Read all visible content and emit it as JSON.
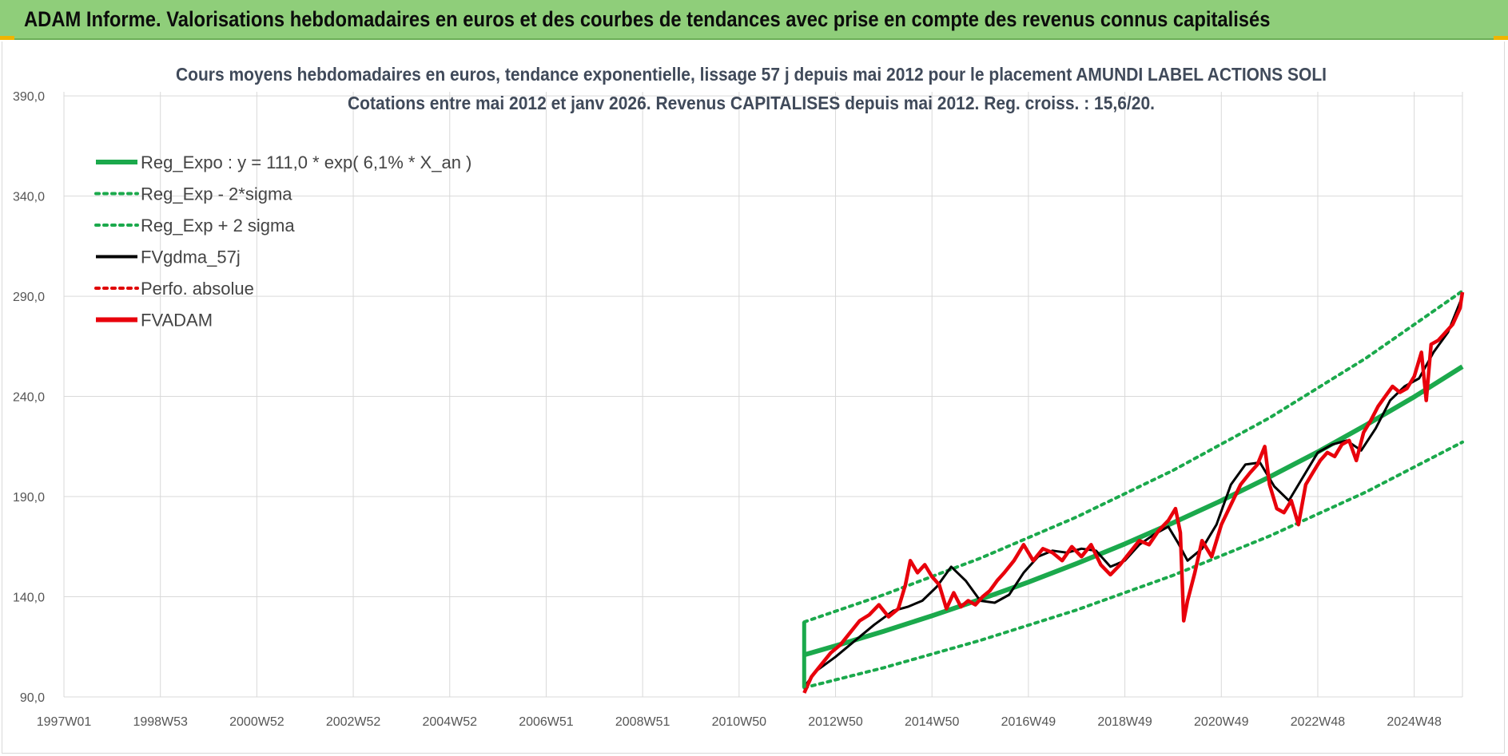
{
  "banner": {
    "title": "ADAM Informe. Valorisations hebdomadaires en euros et des courbes de tendances avec prise en compte des revenus connus capitalisés"
  },
  "colors": {
    "banner_bg": "#8fce7a",
    "corner_accent": "#f0b400",
    "regression": "#1ba94c",
    "band": "#1ba94c",
    "smoothed": "#000000",
    "perfo": "#e00000",
    "fvadam": "#e8000b"
  },
  "chart_data": {
    "type": "line",
    "title_lines": [
      "Cours moyens hebdomadaires en euros, tendance exponentielle, lissage 57 j depuis mai 2012 pour le placement AMUNDI LABEL ACTIONS SOLI",
      "Cotations entre mai 2012 et janv 2026. Revenus CAPITALISES depuis mai 2012. Reg. croiss. : 15,6/20."
    ],
    "xlabel": "",
    "ylabel": "",
    "ylim": [
      90,
      400
    ],
    "y_ticks": [
      "390,0",
      "340,0",
      "290,0",
      "240,0",
      "190,0",
      "140,0",
      "90,0"
    ],
    "y_tick_values": [
      390,
      340,
      290,
      240,
      190,
      140,
      90
    ],
    "x_range_years": [
      1997.0,
      2026.0
    ],
    "x_ticks": [
      "1997W01",
      "1998W53",
      "2000W52",
      "2002W52",
      "2004W52",
      "2006W51",
      "2008W51",
      "2010W50",
      "2012W50",
      "2014W50",
      "2016W49",
      "2018W49",
      "2020W49",
      "2022W48",
      "2024W48"
    ],
    "x_tick_years": [
      1997.0,
      1999.0,
      2001.0,
      2003.0,
      2005.0,
      2007.0,
      2009.0,
      2011.0,
      2013.0,
      2015.0,
      2017.0,
      2019.0,
      2021.0,
      2023.0,
      2025.0
    ],
    "grid": true,
    "legend_position": "top-left",
    "regression": {
      "a": 111.0,
      "rate": 0.061,
      "start_year": 2012.35,
      "band_factor": 0.148
    },
    "series": [
      {
        "name": "Reg_Expo : y = 111,0 * exp( 6,1% *  X_an )",
        "style": "solid-thick",
        "color": "#1ba94c",
        "x": [
          2012.35,
          2013,
          2014,
          2015,
          2016,
          2017,
          2018,
          2019,
          2020,
          2021,
          2022,
          2023,
          2024,
          2025,
          2026
        ],
        "values": [
          111.0,
          115.5,
          122.8,
          130.5,
          138.7,
          147.3,
          156.6,
          166.4,
          176.9,
          188.0,
          199.8,
          212.3,
          225.7,
          239.8,
          254.9
        ]
      },
      {
        "name": "Reg_Exp - 2*sigma",
        "style": "dotted",
        "color": "#1ba94c",
        "x": [
          2012.35,
          2014,
          2016,
          2018,
          2020,
          2022,
          2024,
          2026
        ],
        "values": [
          94.6,
          104.6,
          118.2,
          133.4,
          150.7,
          170.3,
          192.3,
          217.2
        ]
      },
      {
        "name": "Reg_Exp + 2 sigma",
        "style": "dotted",
        "color": "#1ba94c",
        "x": [
          2012.35,
          2014,
          2016,
          2018,
          2020,
          2022,
          2024,
          2026
        ],
        "values": [
          127.4,
          141.0,
          159.2,
          179.8,
          203.1,
          229.3,
          259.1,
          292.6
        ]
      },
      {
        "name": "FVgdma_57j",
        "style": "solid",
        "color": "#000000",
        "x": [
          2012.35,
          2012.6,
          2013.0,
          2013.4,
          2013.8,
          2014.2,
          2014.5,
          2014.8,
          2015.1,
          2015.4,
          2015.7,
          2016.0,
          2016.3,
          2016.6,
          2016.9,
          2017.2,
          2017.5,
          2017.8,
          2018.1,
          2018.4,
          2018.7,
          2019.0,
          2019.3,
          2019.6,
          2019.9,
          2020.1,
          2020.3,
          2020.6,
          2020.9,
          2021.2,
          2021.5,
          2021.8,
          2022.1,
          2022.4,
          2022.7,
          2023.0,
          2023.3,
          2023.6,
          2023.9,
          2024.2,
          2024.5,
          2024.8,
          2025.1,
          2025.4,
          2025.7,
          2026.0
        ],
        "values": [
          95,
          103,
          110,
          118,
          126,
          133,
          135,
          138,
          145,
          155,
          148,
          138,
          137,
          141,
          152,
          160,
          163,
          162,
          164,
          163,
          155,
          158,
          166,
          171,
          175,
          167,
          158,
          164,
          176,
          196,
          206,
          207,
          195,
          188,
          200,
          212,
          216,
          218,
          213,
          224,
          238,
          245,
          249,
          262,
          272,
          290
        ]
      },
      {
        "name": "Perfo. absolue",
        "style": "dotted",
        "color": "#e00000",
        "x": [],
        "values": []
      },
      {
        "name": "FVADAM",
        "style": "solid-thick",
        "color": "#e8000b",
        "x": [
          2012.35,
          2012.5,
          2012.7,
          2012.9,
          2013.1,
          2013.3,
          2013.5,
          2013.7,
          2013.9,
          2014.1,
          2014.3,
          2014.45,
          2014.55,
          2014.7,
          2014.85,
          2015.0,
          2015.15,
          2015.3,
          2015.45,
          2015.6,
          2015.75,
          2015.9,
          2016.05,
          2016.2,
          2016.35,
          2016.5,
          2016.7,
          2016.9,
          2017.1,
          2017.3,
          2017.5,
          2017.7,
          2017.9,
          2018.1,
          2018.3,
          2018.5,
          2018.7,
          2018.9,
          2019.1,
          2019.3,
          2019.5,
          2019.7,
          2019.9,
          2020.05,
          2020.15,
          2020.22,
          2020.3,
          2020.45,
          2020.6,
          2020.8,
          2021.0,
          2021.2,
          2021.4,
          2021.6,
          2021.75,
          2021.9,
          2022.0,
          2022.15,
          2022.3,
          2022.45,
          2022.6,
          2022.75,
          2022.9,
          2023.05,
          2023.2,
          2023.35,
          2023.5,
          2023.65,
          2023.8,
          2023.95,
          2024.1,
          2024.25,
          2024.4,
          2024.55,
          2024.7,
          2024.85,
          2025.0,
          2025.15,
          2025.25,
          2025.35,
          2025.5,
          2025.65,
          2025.8,
          2025.95,
          2026.0
        ],
        "values": [
          92,
          100,
          106,
          112,
          116,
          122,
          128,
          131,
          136,
          130,
          134,
          146,
          158,
          152,
          156,
          150,
          146,
          134,
          142,
          135,
          138,
          136,
          140,
          143,
          148,
          152,
          158,
          166,
          158,
          164,
          162,
          158,
          165,
          160,
          166,
          156,
          151,
          156,
          162,
          168,
          166,
          173,
          178,
          184,
          172,
          128,
          138,
          152,
          168,
          160,
          176,
          186,
          196,
          202,
          206,
          215,
          196,
          184,
          182,
          188,
          176,
          196,
          202,
          208,
          212,
          210,
          216,
          218,
          208,
          222,
          228,
          235,
          240,
          245,
          242,
          244,
          250,
          262,
          238,
          266,
          268,
          272,
          276,
          284,
          292
        ]
      }
    ]
  }
}
